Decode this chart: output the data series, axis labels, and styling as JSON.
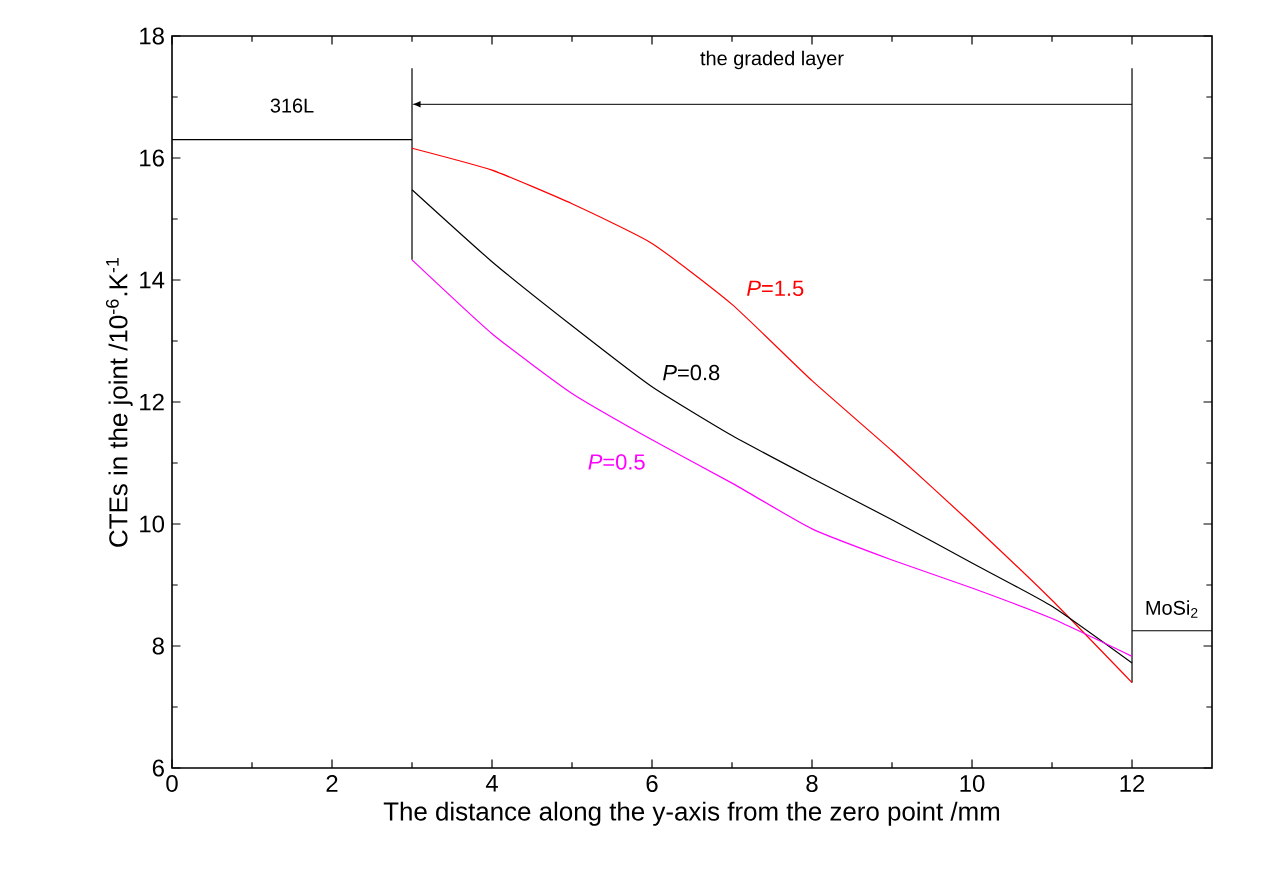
{
  "chart_data": {
    "type": "line",
    "xlabel": "The distance along the y-axis from the zero point  /mm",
    "ylabel": "CTEs in the joint /10$^{-6}$.K$^{-1}$",
    "xlim": [
      0,
      13
    ],
    "ylim": [
      6,
      18
    ],
    "xticks": [
      0,
      2,
      4,
      6,
      8,
      10,
      12
    ],
    "yticks": [
      6,
      8,
      10,
      12,
      14,
      16,
      18
    ],
    "grid": false,
    "legend": false,
    "marker": "none",
    "line_style": "solid",
    "series": [
      {
        "color": "#000000",
        "x": [
          0,
          3
        ],
        "values": [
          16.3,
          16.3
        ]
      },
      {
        "color": "#000000",
        "x": [
          3,
          3
        ],
        "values": [
          17.47,
          14.33
        ]
      },
      {
        "color": "#000000",
        "x": [
          12,
          12
        ],
        "values": [
          17.47,
          7.4
        ]
      },
      {
        "color": "#000000",
        "x": [
          12,
          13
        ],
        "values": [
          8.25,
          8.25
        ]
      },
      {
        "name": "*P*=1.5",
        "color": "#ff0000",
        "x": [
          3,
          4,
          5,
          6,
          7,
          8,
          9,
          10,
          11,
          12
        ],
        "values": [
          16.16,
          15.8,
          15.25,
          14.6,
          13.6,
          12.35,
          11.2,
          10.0,
          8.75,
          7.4
        ]
      },
      {
        "name": "*P*=0.8",
        "color": "#000000",
        "x": [
          3,
          4,
          5,
          6,
          7,
          8,
          9,
          10,
          11,
          12
        ],
        "values": [
          15.48,
          14.3,
          13.25,
          12.25,
          11.45,
          10.75,
          10.07,
          9.36,
          8.65,
          7.72
        ]
      },
      {
        "name": "*P*=0.5",
        "color": "#ff00ff",
        "x": [
          3,
          4,
          5,
          6,
          7,
          8,
          9,
          10,
          11,
          12
        ],
        "values": [
          14.33,
          13.12,
          12.14,
          11.38,
          10.67,
          9.92,
          9.41,
          8.95,
          8.45,
          7.83
        ]
      }
    ],
    "annotations": [
      "316L",
      "the graded layer",
      "MoSi$_{2}$"
    ]
  }
}
